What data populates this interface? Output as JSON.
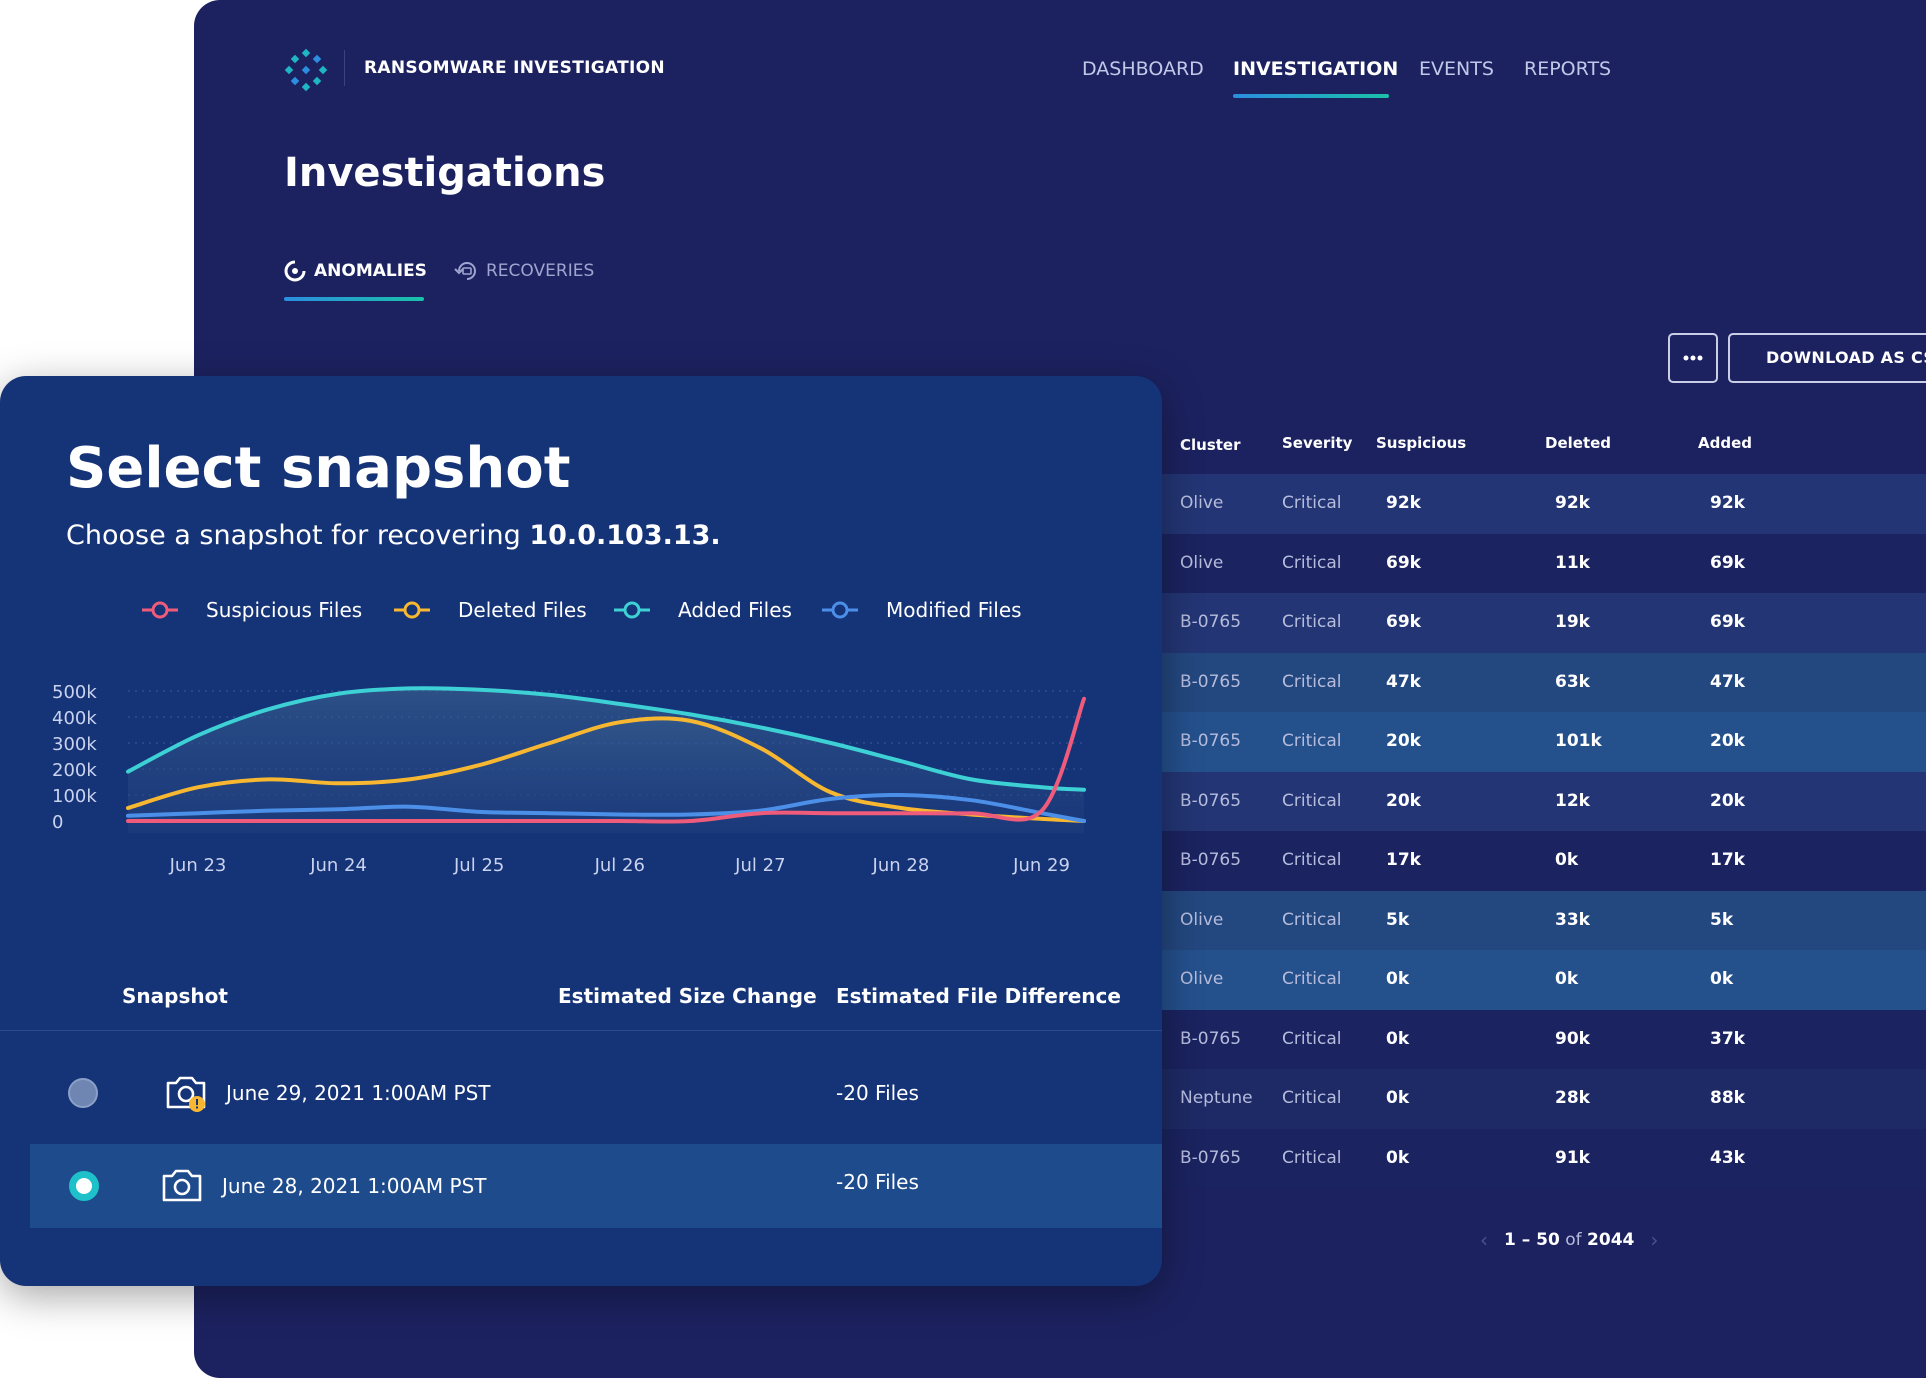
{
  "header": {
    "brand": "RANSOMWARE INVESTIGATION",
    "nav": [
      {
        "label": "DASHBOARD",
        "active": false
      },
      {
        "label": "INVESTIGATION",
        "active": true
      },
      {
        "label": "EVENTS",
        "active": false
      },
      {
        "label": "REPORTS",
        "active": false
      }
    ]
  },
  "page": {
    "title": "Investigations",
    "tabs": [
      {
        "label": "ANOMALIES",
        "icon": "anomalies-icon",
        "active": true
      },
      {
        "label": "RECOVERIES",
        "icon": "recoveries-icon",
        "active": false
      }
    ],
    "toolbar": {
      "more_icon": "more-horizontal-icon",
      "download_label": "DOWNLOAD AS CSV"
    }
  },
  "table": {
    "columns": [
      "Cluster",
      "Severity",
      "Suspicious",
      "Deleted",
      "Added"
    ],
    "rows": [
      [
        "Olive",
        "Critical",
        "92k",
        "92k",
        "92k"
      ],
      [
        "Olive",
        "Critical",
        "69k",
        "11k",
        "69k"
      ],
      [
        "B-0765",
        "Critical",
        "69k",
        "19k",
        "69k"
      ],
      [
        "B-0765",
        "Critical",
        "47k",
        "63k",
        "47k"
      ],
      [
        "B-0765",
        "Critical",
        "20k",
        "101k",
        "20k"
      ],
      [
        "B-0765",
        "Critical",
        "20k",
        "12k",
        "20k"
      ],
      [
        "B-0765",
        "Critical",
        "17k",
        "0k",
        "17k"
      ],
      [
        "Olive",
        "Critical",
        "5k",
        "33k",
        "5k"
      ],
      [
        "Olive",
        "Critical",
        "0k",
        "0k",
        "0k"
      ],
      [
        "B-0765",
        "Critical",
        "0k",
        "90k",
        "37k"
      ],
      [
        "Neptune",
        "Critical",
        "0k",
        "28k",
        "88k"
      ],
      [
        "B-0765",
        "Critical",
        "0k",
        "91k",
        "43k"
      ]
    ],
    "row_colors": [
      "#233574",
      "#1b2360",
      "#233574",
      "#23477f",
      "#24508c",
      "#233574",
      "#1b2360",
      "#23477f",
      "#24508c",
      "#1b2360",
      "#1e2a66",
      "#1b2360"
    ],
    "pagination": {
      "range": "1 – 50",
      "of_label": "of",
      "total": "2044"
    }
  },
  "snapshot": {
    "title": "Select snapshot",
    "subtitle_prefix": "Choose a snapshot for recovering",
    "subtitle_ip": "10.0.103.13.",
    "legend": [
      {
        "label": "Suspicious Files",
        "color": "#ef5b7a"
      },
      {
        "label": "Deleted Files",
        "color": "#f7b731"
      },
      {
        "label": "Added Files",
        "color": "#3dd0d4"
      },
      {
        "label": "Modified Files",
        "color": "#4c8fe8"
      }
    ],
    "columns": {
      "snapshot": "Snapshot",
      "size": "Estimated Size Change",
      "files": "Estimated File Difference"
    },
    "rows": [
      {
        "date": "June 29, 2021 1:00AM PST",
        "files": "-20 Files",
        "selected": false,
        "warning": true
      },
      {
        "date": "June 28, 2021 1:00AM PST",
        "files": "-20 Files",
        "selected": true,
        "warning": false
      }
    ]
  },
  "chart_data": {
    "type": "area",
    "categories": [
      "Jun 23",
      "Jun 24",
      "Jul 25",
      "Jul 26",
      "Jul 27",
      "Jun 28",
      "Jun 29"
    ],
    "y_ticks": [
      "500k",
      "400k",
      "300k",
      "200k",
      "100k",
      "0"
    ],
    "ylim": [
      0,
      500000
    ],
    "x": [
      0,
      0.5,
      1,
      1.5,
      2,
      2.5,
      3,
      3.5,
      4,
      4.5,
      5,
      5.5,
      6,
      6.5,
      6.8
    ],
    "series": [
      {
        "name": "Added Files",
        "color": "#3dd0d4",
        "values": [
          190000,
          330000,
          430000,
          490000,
          510000,
          505000,
          485000,
          450000,
          410000,
          360000,
          300000,
          230000,
          160000,
          130000,
          120000
        ]
      },
      {
        "name": "Deleted Files",
        "color": "#f7b731",
        "values": [
          50000,
          130000,
          160000,
          145000,
          160000,
          215000,
          300000,
          380000,
          385000,
          280000,
          110000,
          50000,
          25000,
          8000,
          0
        ]
      },
      {
        "name": "Modified Files",
        "color": "#4c8fe8",
        "values": [
          20000,
          30000,
          40000,
          45000,
          55000,
          35000,
          30000,
          25000,
          25000,
          40000,
          85000,
          100000,
          80000,
          30000,
          0
        ]
      },
      {
        "name": "Suspicious Files",
        "color": "#ef5b7a",
        "values": [
          0,
          0,
          0,
          0,
          0,
          0,
          0,
          0,
          0,
          30000,
          30000,
          30000,
          30000,
          40000,
          470000
        ]
      }
    ],
    "grid": true
  }
}
